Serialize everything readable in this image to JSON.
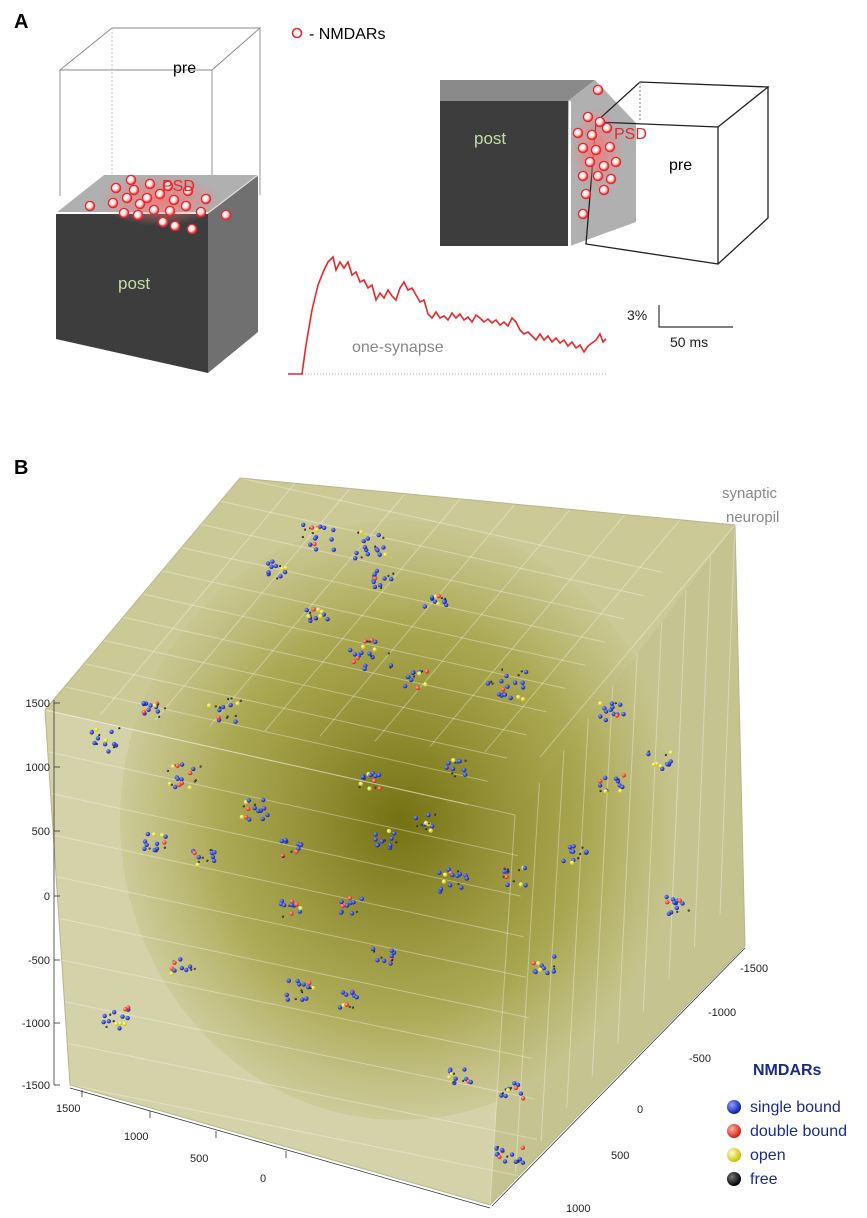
{
  "panel_a": {
    "label": "A",
    "legend": "- NMDARs",
    "left_box": {
      "pre": "pre",
      "post": "post",
      "psd": "PSD"
    },
    "right_box": {
      "pre": "pre",
      "post": "post",
      "psd": "PSD"
    },
    "trace": {
      "label": "one-synapse",
      "scale_y": "3%",
      "scale_x": "50 ms"
    },
    "colors": {
      "receptor": "#e8262b",
      "psd": "#f08080",
      "trace": "#e8262b",
      "post": "#3d3d3d"
    }
  },
  "panel_b": {
    "label": "B",
    "title": "synaptic\nneuropil",
    "title_lines": [
      "synaptic",
      "neuropil"
    ],
    "z_ticks": [
      "1500",
      "1000",
      "500",
      "0",
      "-500",
      "-1000",
      "-1500"
    ],
    "x_ticks": [
      "1500",
      "1000",
      "500",
      "0"
    ],
    "y_ticks": [
      "-1500",
      "-1000",
      "-500",
      "0",
      "500",
      "1000"
    ],
    "legend": {
      "title": "NMDARs",
      "items": [
        {
          "label": "single bound",
          "color": "#1a2ecf"
        },
        {
          "label": "double bound",
          "color": "#e8261c"
        },
        {
          "label": "open",
          "color": "#e8e21c"
        },
        {
          "label": "free",
          "color": "#111111"
        }
      ]
    },
    "colors": {
      "cube": "#c9c79a",
      "cube_dark": "#7e7d17"
    }
  }
}
